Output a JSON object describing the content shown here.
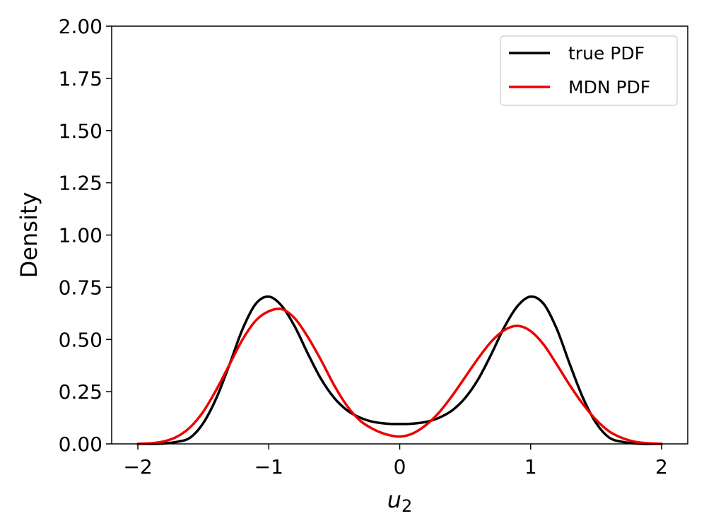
{
  "chart_data": {
    "type": "line",
    "title": "",
    "xlabel": "u",
    "xlabel_subscript": "2",
    "ylabel": "Density",
    "xlim": [
      -2.2,
      2.2
    ],
    "ylim": [
      0,
      2.0
    ],
    "xticks": [
      -2,
      -1,
      0,
      1,
      2
    ],
    "xtick_labels": [
      "−2",
      "−1",
      "0",
      "1",
      "2"
    ],
    "yticks": [
      0,
      0.25,
      0.5,
      0.75,
      1.0,
      1.25,
      1.5,
      1.75,
      2.0
    ],
    "ytick_labels": [
      "0.00",
      "0.25",
      "0.50",
      "0.75",
      "1.00",
      "1.25",
      "1.50",
      "1.75",
      "2.00"
    ],
    "grid": false,
    "legend_position": "upper-right",
    "series": [
      {
        "name": "true PDF",
        "color": "#000000",
        "x": [
          -2.0,
          -1.9,
          -1.8,
          -1.7,
          -1.6,
          -1.5,
          -1.4,
          -1.3,
          -1.2,
          -1.1,
          -1.0,
          -0.9,
          -0.8,
          -0.7,
          -0.6,
          -0.5,
          -0.4,
          -0.3,
          -0.2,
          -0.1,
          0.0,
          0.1,
          0.2,
          0.3,
          0.4,
          0.5,
          0.6,
          0.7,
          0.8,
          0.9,
          1.0,
          1.1,
          1.2,
          1.3,
          1.4,
          1.5,
          1.6,
          1.7,
          1.8,
          1.9,
          2.0
        ],
        "y": [
          0.0,
          0.0,
          0.002,
          0.01,
          0.03,
          0.1,
          0.22,
          0.38,
          0.55,
          0.67,
          0.705,
          0.66,
          0.56,
          0.43,
          0.31,
          0.22,
          0.16,
          0.125,
          0.105,
          0.097,
          0.095,
          0.097,
          0.105,
          0.125,
          0.16,
          0.22,
          0.31,
          0.43,
          0.56,
          0.66,
          0.705,
          0.67,
          0.55,
          0.38,
          0.22,
          0.1,
          0.03,
          0.01,
          0.002,
          0.0,
          0.0
        ]
      },
      {
        "name": "MDN PDF",
        "color": "#ee0000",
        "x": [
          -2.0,
          -1.9,
          -1.8,
          -1.7,
          -1.6,
          -1.5,
          -1.4,
          -1.3,
          -1.2,
          -1.1,
          -1.0,
          -0.9,
          -0.8,
          -0.7,
          -0.6,
          -0.5,
          -0.4,
          -0.3,
          -0.2,
          -0.1,
          0.0,
          0.1,
          0.2,
          0.3,
          0.4,
          0.5,
          0.6,
          0.7,
          0.8,
          0.9,
          1.0,
          1.1,
          1.2,
          1.3,
          1.4,
          1.5,
          1.6,
          1.7,
          1.8,
          1.9,
          2.0
        ],
        "y": [
          0.0,
          0.003,
          0.012,
          0.035,
          0.08,
          0.155,
          0.26,
          0.38,
          0.5,
          0.59,
          0.635,
          0.645,
          0.6,
          0.51,
          0.4,
          0.28,
          0.18,
          0.11,
          0.07,
          0.045,
          0.035,
          0.05,
          0.09,
          0.15,
          0.23,
          0.32,
          0.41,
          0.49,
          0.545,
          0.565,
          0.54,
          0.475,
          0.38,
          0.28,
          0.19,
          0.115,
          0.06,
          0.028,
          0.01,
          0.003,
          0.0
        ]
      }
    ]
  }
}
